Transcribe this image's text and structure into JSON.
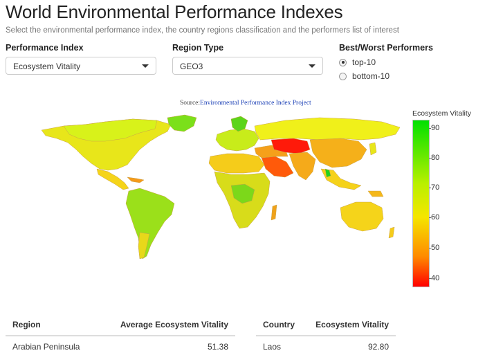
{
  "header": {
    "title": "World Environmental Performance Indexes",
    "subtitle": "Select the environmental performance index, the country regions classification and the performers list of interest"
  },
  "controls": {
    "index": {
      "label": "Performance Index",
      "value": "Ecosystem Vitality"
    },
    "region": {
      "label": "Region Type",
      "value": "GEO3"
    },
    "performers": {
      "label": "Best/Worst Performers",
      "options": [
        "top-10",
        "bottom-10"
      ],
      "selected": "top-10"
    }
  },
  "map": {
    "source_prefix": "Source:",
    "source_link": "Environmental Performance Index Project",
    "legend_title": "Ecosystem Vitality",
    "legend_ticks": [
      "90",
      "80",
      "70",
      "60",
      "50",
      "40"
    ],
    "colors": {
      "high": "#00e000",
      "mid": "#f5e600",
      "low": "#ff0000"
    }
  },
  "region_table": {
    "headers": [
      "Region",
      "Average Ecosystem Vitality"
    ],
    "rows": [
      [
        "Arabian Peninsula",
        "51.38"
      ]
    ]
  },
  "country_table": {
    "headers": [
      "Country",
      "Ecosystem Vitality"
    ],
    "rows": [
      [
        "Laos",
        "92.80"
      ]
    ]
  }
}
